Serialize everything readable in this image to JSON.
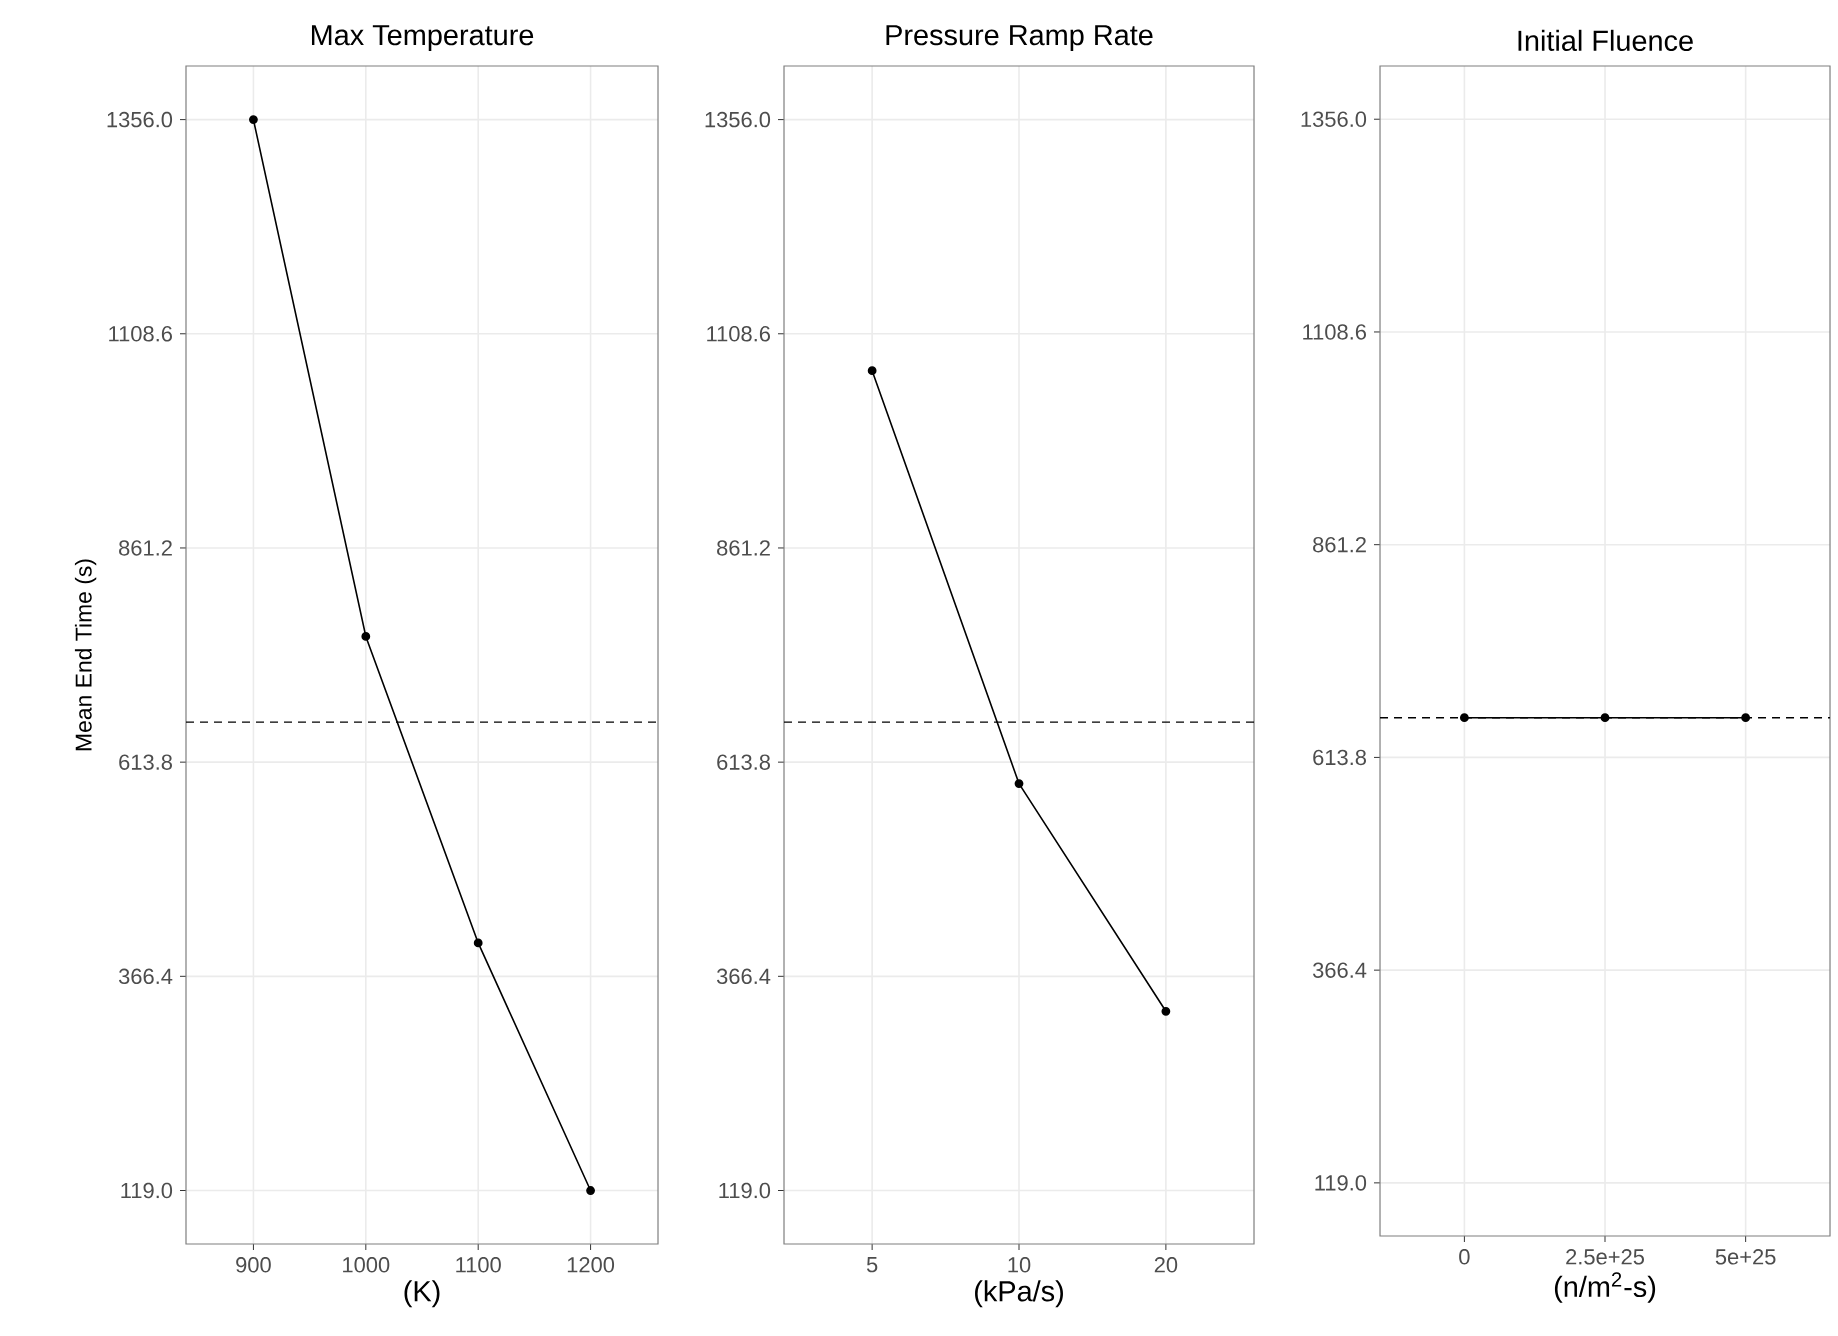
{
  "chart_data": [
    {
      "type": "line",
      "title": "Max Temperature",
      "xlabel": "(K)",
      "ylabel": "Mean End Time (s)",
      "categories": [
        "900",
        "1000",
        "1100",
        "1200"
      ],
      "values": [
        1356,
        759,
        405,
        119
      ],
      "color": "#000000",
      "marker": "circle",
      "line_style": "solid",
      "grid": true,
      "ylim": [
        57.2,
        1417.9
      ],
      "yticks": [
        {
          "value": 119,
          "label": "119.0"
        },
        {
          "value": 366.4,
          "label": "366.4"
        },
        {
          "value": 613.8,
          "label": "613.8"
        },
        {
          "value": 861.2,
          "label": "861.2"
        },
        {
          "value": 1108.6,
          "label": "1108.6"
        },
        {
          "value": 1356,
          "label": "1356.0"
        }
      ],
      "ref_lines": [
        {
          "axis": "y",
          "value": 660,
          "line_style": "dashed",
          "color": "#000000"
        }
      ]
    },
    {
      "type": "line",
      "title": "Pressure Ramp Rate",
      "xlabel": "(kPa/s)",
      "categories": [
        "5",
        "10",
        "20"
      ],
      "values": [
        1066,
        589,
        326
      ],
      "color": "#000000",
      "marker": "circle",
      "line_style": "solid",
      "grid": true,
      "ylim": [
        57.2,
        1417.9
      ],
      "yticks": [
        {
          "value": 119,
          "label": "119.0"
        },
        {
          "value": 366.4,
          "label": "366.4"
        },
        {
          "value": 613.8,
          "label": "613.8"
        },
        {
          "value": 861.2,
          "label": "861.2"
        },
        {
          "value": 1108.6,
          "label": "1108.6"
        },
        {
          "value": 1356,
          "label": "1356.0"
        }
      ],
      "ref_lines": [
        {
          "axis": "y",
          "value": 660,
          "line_style": "dashed",
          "color": "#000000"
        }
      ]
    },
    {
      "type": "line",
      "title": "Initial Fluence",
      "xlabel": "(n/m$^{2}$-s)",
      "categories": [
        "0",
        "2.5e+25",
        "5e+25"
      ],
      "values": [
        660,
        660,
        660
      ],
      "color": "#000000",
      "marker": "circle",
      "line_style": "solid",
      "grid": true,
      "ylim": [
        57.2,
        1417.9
      ],
      "yticks": [
        {
          "value": 119,
          "label": "119.0"
        },
        {
          "value": 366.4,
          "label": "366.4"
        },
        {
          "value": 613.8,
          "label": "613.8"
        },
        {
          "value": 861.2,
          "label": "861.2"
        },
        {
          "value": 1108.6,
          "label": "1108.6"
        },
        {
          "value": 1356,
          "label": "1356.0"
        }
      ],
      "ref_lines": [
        {
          "axis": "y",
          "value": 660,
          "line_style": "dashed",
          "color": "#000000"
        }
      ]
    }
  ]
}
